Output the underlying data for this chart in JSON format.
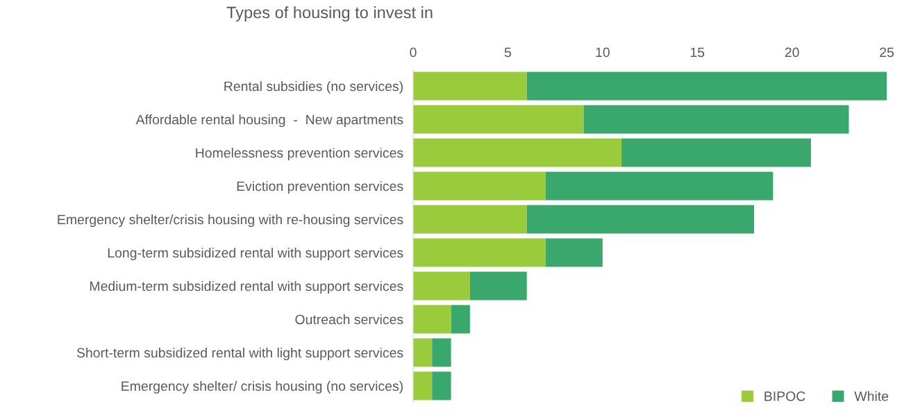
{
  "chart_data": {
    "type": "bar",
    "orientation": "horizontal",
    "stacked": true,
    "title": "Types of housing to invest in",
    "categories": [
      "Rental subsidies (no services)",
      "Affordable rental housing  -  New apartments",
      "Homelessness prevention services",
      "Eviction prevention services",
      "Emergency shelter/crisis housing with re-housing services",
      "Long-term subsidized rental with support services",
      "Medium-term subsidized rental with support services",
      "Outreach services",
      "Short-term subsidized rental with light support services",
      "Emergency shelter/ crisis housing (no services)"
    ],
    "series": [
      {
        "name": "BIPOC",
        "color": "#9acb3c",
        "values": [
          6,
          9,
          11,
          7,
          6,
          7,
          3,
          2,
          1,
          1
        ]
      },
      {
        "name": "White",
        "color": "#3aa76d",
        "values": [
          19,
          14,
          10,
          12,
          12,
          3,
          3,
          1,
          1,
          1
        ]
      }
    ],
    "xlim": [
      0,
      25
    ],
    "xticks": [
      0,
      5,
      10,
      15,
      20,
      25
    ],
    "grid": false,
    "legend": "bottom right"
  }
}
